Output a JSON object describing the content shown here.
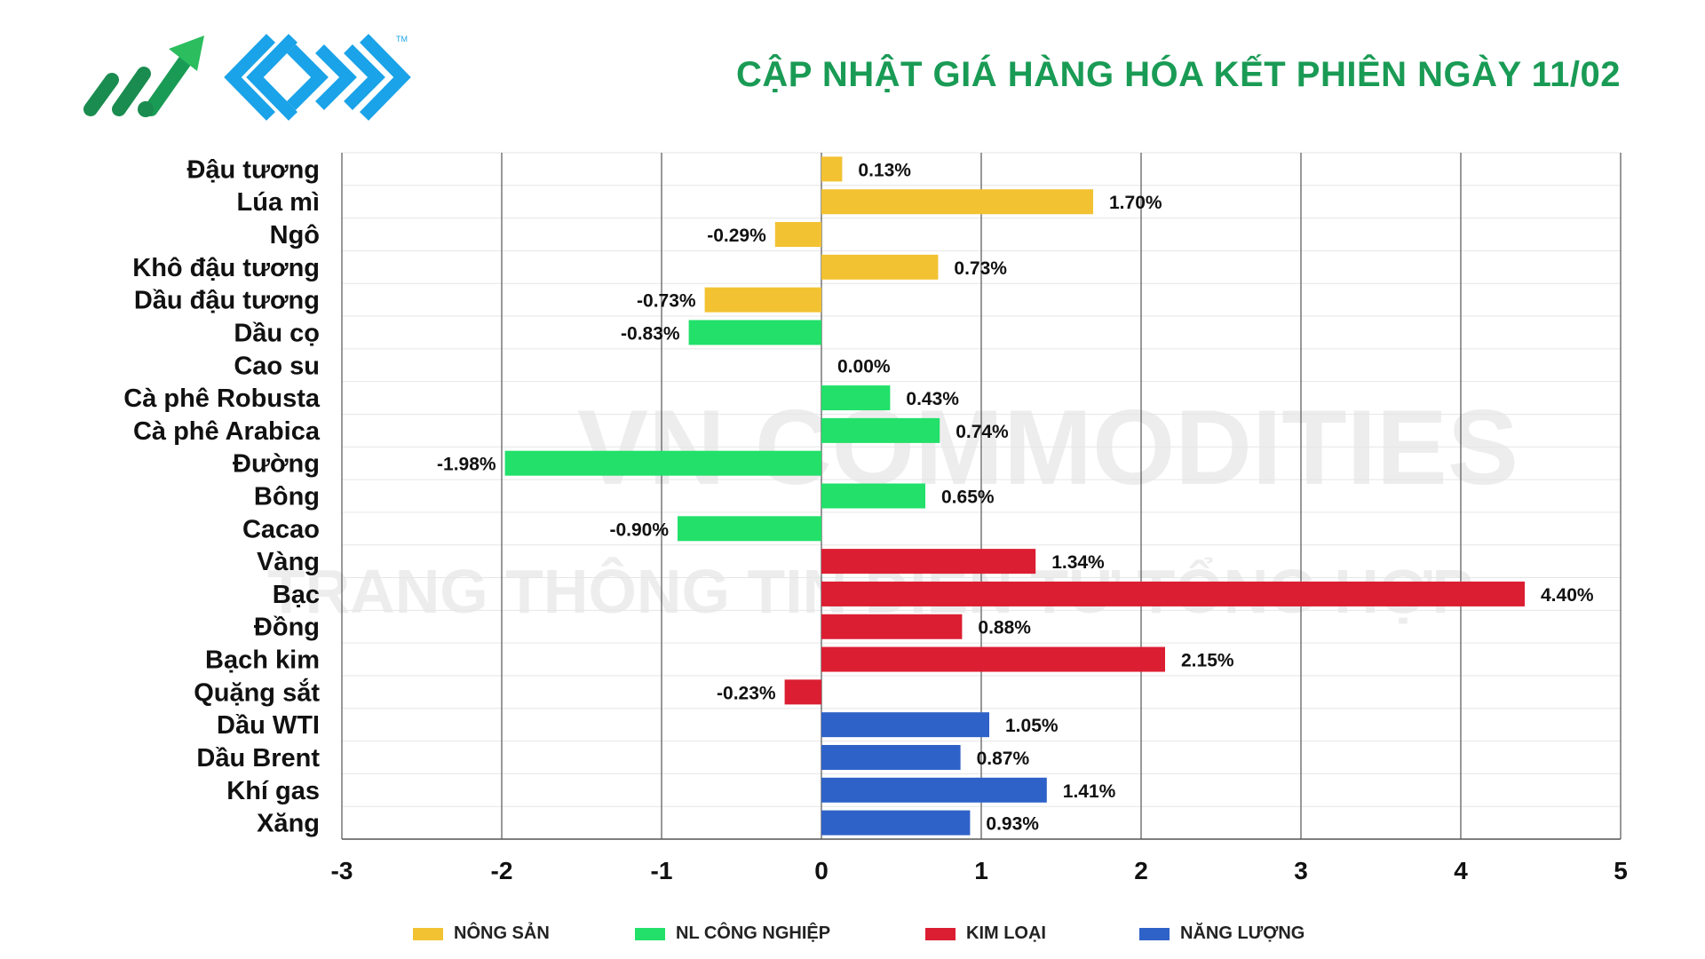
{
  "title": "CẬP NHẬT GIÁ HÀNG HÓA KẾT PHIÊN NGÀY 11/02",
  "logo": {
    "trademark": "TM"
  },
  "watermark": {
    "line1": "VN COMMODITIES",
    "line2": "TRANG THÔNG TIN ĐIỆN TỬ TỔNG HỢP"
  },
  "colors": {
    "nong_san": "#f2c232",
    "nl_cong_nghiep": "#22e06a",
    "kim_loai": "#dc1e32",
    "nang_luong": "#2f62c8",
    "title": "#1a9b55"
  },
  "legend": [
    {
      "label": "NÔNG SẢN",
      "color": "#f2c232"
    },
    {
      "label": "NL CÔNG NGHIỆP",
      "color": "#22e06a"
    },
    {
      "label": "KIM LOẠI",
      "color": "#dc1e32"
    },
    {
      "label": "NĂNG LƯỢNG",
      "color": "#2f62c8"
    }
  ],
  "chart_data": {
    "type": "bar",
    "orientation": "horizontal",
    "xlim": [
      -3,
      5
    ],
    "xticks": [
      "-3",
      "-2",
      "-1",
      "0",
      "1",
      "2",
      "3",
      "4",
      "5"
    ],
    "grid": true,
    "legend_position": "bottom",
    "categories": [
      "Đậu tương",
      "Lúa mì",
      "Ngô",
      "Khô đậu tương",
      "Dầu đậu tương",
      "Dầu cọ",
      "Cao su",
      "Cà phê Robusta",
      "Cà phê Arabica",
      "Đường",
      "Bông",
      "Cacao",
      "Vàng",
      "Bạc",
      "Đồng",
      "Bạch kim",
      "Quặng sắt",
      "Dầu WTI",
      "Dầu Brent",
      "Khí gas",
      "Xăng"
    ],
    "values": [
      0.13,
      1.7,
      -0.29,
      0.73,
      -0.73,
      -0.83,
      0.0,
      0.43,
      0.74,
      -1.98,
      0.65,
      -0.9,
      1.34,
      4.4,
      0.88,
      2.15,
      -0.23,
      1.05,
      0.87,
      1.41,
      0.93
    ],
    "value_labels": [
      "0.13%",
      "1.70%",
      "-0.29%",
      "0.73%",
      "-0.73%",
      "-0.83%",
      "0.00%",
      "0.43%",
      "0.74%",
      "-1.98%",
      "0.65%",
      "-0.90%",
      "1.34%",
      "4.40%",
      "0.88%",
      "2.15%",
      "-0.23%",
      "1.05%",
      "0.87%",
      "1.41%",
      "0.93%"
    ],
    "groups": [
      "nong_san",
      "nong_san",
      "nong_san",
      "nong_san",
      "nong_san",
      "nl_cong_nghiep",
      "nl_cong_nghiep",
      "nl_cong_nghiep",
      "nl_cong_nghiep",
      "nl_cong_nghiep",
      "nl_cong_nghiep",
      "nl_cong_nghiep",
      "kim_loai",
      "kim_loai",
      "kim_loai",
      "kim_loai",
      "kim_loai",
      "nang_luong",
      "nang_luong",
      "nang_luong",
      "nang_luong"
    ]
  }
}
